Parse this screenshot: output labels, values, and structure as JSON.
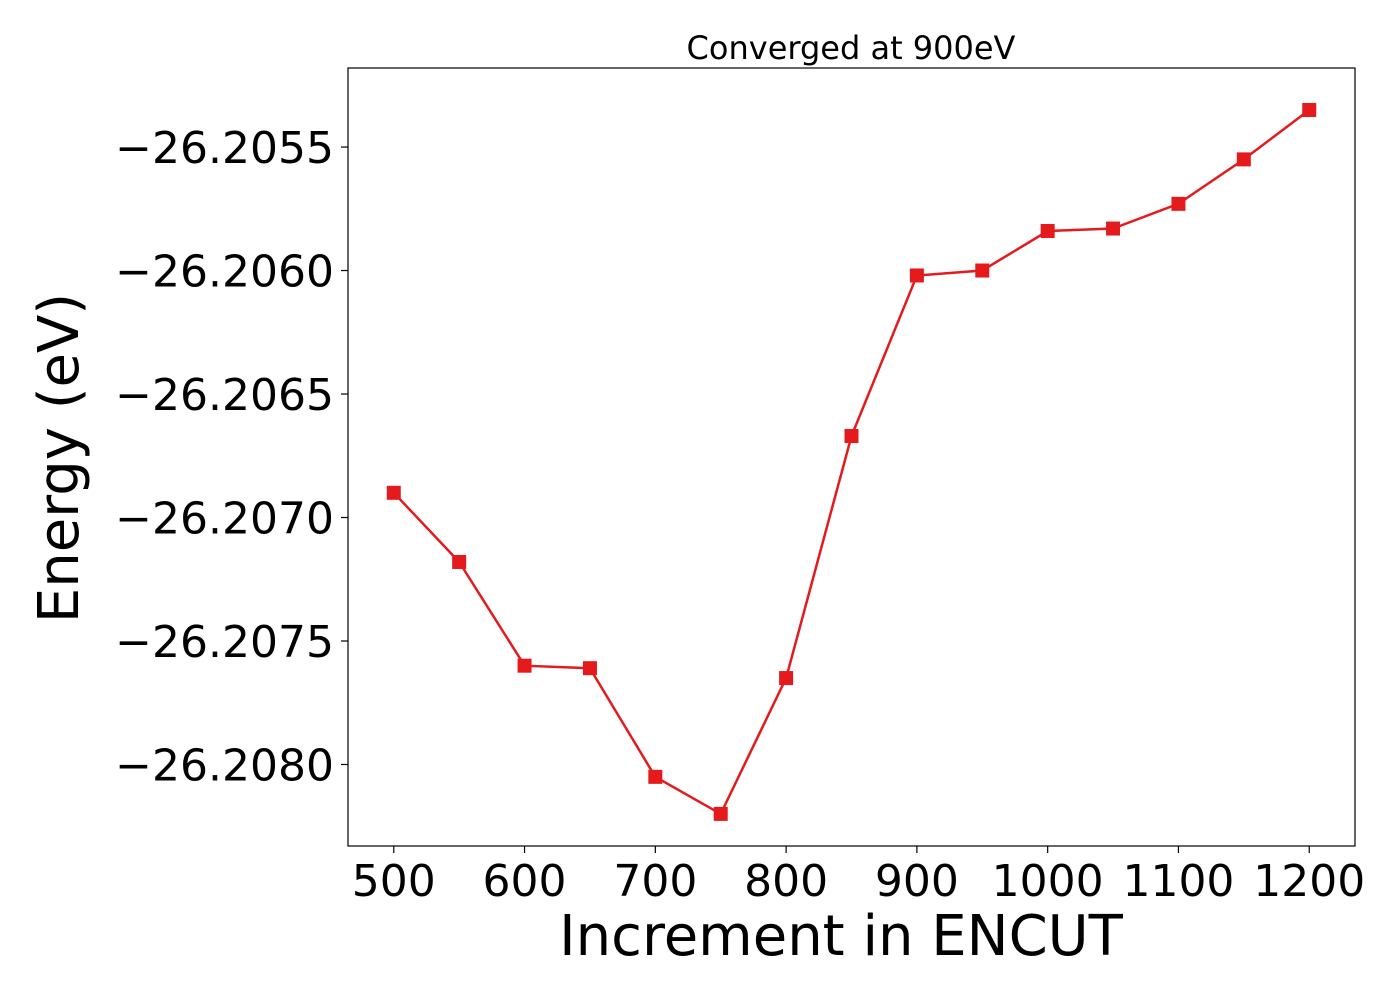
{
  "chart_data": {
    "type": "line",
    "title": "Converged at 900eV",
    "xlabel": "Increment in ENCUT",
    "ylabel": "Energy (eV)",
    "xlim": [
      465,
      1235
    ],
    "ylim": [
      -26.20833,
      -26.20518
    ],
    "xticks": [
      500,
      600,
      700,
      800,
      900,
      1000,
      1100,
      1200
    ],
    "xtick_labels": [
      "500",
      "600",
      "700",
      "800",
      "900",
      "1000",
      "1100",
      "1200"
    ],
    "yticks": [
      -26.2055,
      -26.206,
      -26.2065,
      -26.207,
      -26.2075,
      -26.208
    ],
    "ytick_labels": [
      "−26.2055",
      "−26.2060",
      "−26.2065",
      "−26.2070",
      "−26.2075",
      "−26.2080"
    ],
    "grid": false,
    "series": [
      {
        "color": "#e41a1c",
        "marker": "square",
        "x": [
          500,
          550,
          600,
          650,
          700,
          750,
          800,
          850,
          900,
          950,
          1000,
          1050,
          1100,
          1150,
          1200
        ],
        "y": [
          -26.2069,
          -26.20718,
          -26.2076,
          -26.20761,
          -26.20805,
          -26.2082,
          -26.20765,
          -26.20667,
          -26.20602,
          -26.206,
          -26.20584,
          -26.20583,
          -26.20573,
          -26.20555,
          -26.20535
        ]
      }
    ]
  }
}
